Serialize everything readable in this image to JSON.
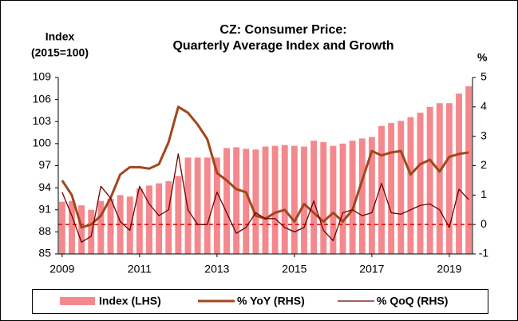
{
  "chart_data": {
    "type": "bar",
    "title": [
      "CZ: Consumer Price:",
      "Quarterly Average Index and Growth"
    ],
    "y_label": [
      "Index",
      "(2015=100)"
    ],
    "y2_label": "%",
    "x": [
      2009,
      2009.25,
      2009.5,
      2009.75,
      2010,
      2010.25,
      2010.5,
      2010.75,
      2011,
      2011.25,
      2011.5,
      2011.75,
      2012,
      2012.25,
      2012.5,
      2012.75,
      2013,
      2013.25,
      2013.5,
      2013.75,
      2014,
      2014.25,
      2014.5,
      2014.75,
      2015,
      2015.25,
      2015.5,
      2015.75,
      2016,
      2016.25,
      2016.5,
      2016.75,
      2017,
      2017.25,
      2017.5,
      2017.75,
      2018,
      2018.25,
      2018.5,
      2018.75,
      2019,
      2019.25,
      2019.5
    ],
    "xlim": [
      2008.9,
      2019.6
    ],
    "xticks": [
      2009,
      2011,
      2013,
      2015,
      2017,
      2019
    ],
    "ylim": [
      85,
      109
    ],
    "yticks": [
      85,
      88,
      91,
      94,
      97,
      100,
      103,
      106,
      109
    ],
    "y2lim": [
      -1,
      5
    ],
    "y2ticks": [
      -1,
      0,
      1,
      2,
      3,
      4,
      5
    ],
    "reference_line": {
      "value": 0,
      "axis": "y2",
      "color": "#e00000"
    },
    "series": [
      {
        "name": "Index (LHS)",
        "type": "bar",
        "color": "#f4888c",
        "values": [
          92.1,
          92.2,
          91.6,
          91.0,
          92.2,
          92.5,
          93.0,
          92.8,
          93.9,
          94.3,
          94.6,
          94.9,
          95.6,
          98.1,
          98.1,
          98.1,
          98.1,
          99.4,
          99.5,
          99.3,
          99.2,
          99.6,
          99.7,
          99.8,
          99.7,
          99.6,
          100.4,
          100.2,
          99.7,
          100.0,
          100.4,
          100.7,
          100.9,
          102.4,
          102.8,
          103.1,
          103.6,
          104.2,
          105.0,
          105.5,
          105.5,
          106.8,
          107.8
        ]
      },
      {
        "name": "% YoY (RHS)",
        "type": "line",
        "axis": "y2",
        "color": "#a2461c",
        "width": 3,
        "values": [
          1.5,
          1.0,
          -0.1,
          0.0,
          0.3,
          0.9,
          1.7,
          1.95,
          1.95,
          1.9,
          2.05,
          2.8,
          4.0,
          3.8,
          3.4,
          2.9,
          1.75,
          1.5,
          1.2,
          1.1,
          0.3,
          0.2,
          0.4,
          0.5,
          0.1,
          0.7,
          0.4,
          0.1,
          0.4,
          0.1,
          0.5,
          1.5,
          2.5,
          2.35,
          2.45,
          2.5,
          1.7,
          2.05,
          2.2,
          1.8,
          2.3,
          2.4,
          2.45
        ]
      },
      {
        "name": "% QoQ (RHS)",
        "type": "line",
        "axis": "y2",
        "color": "#6e0000",
        "width": 1.3,
        "values": [
          1.1,
          0.3,
          -0.6,
          -0.4,
          1.3,
          0.9,
          0.1,
          -0.2,
          1.3,
          0.7,
          0.3,
          0.5,
          2.4,
          0.5,
          0.0,
          0.0,
          1.1,
          0.4,
          -0.3,
          -0.1,
          0.4,
          0.2,
          0.2,
          -0.1,
          -0.25,
          -0.1,
          0.8,
          -0.2,
          -0.55,
          0.4,
          0.5,
          0.3,
          0.4,
          1.4,
          0.4,
          0.35,
          0.5,
          0.65,
          0.7,
          0.5,
          -0.1,
          1.2,
          0.85
        ]
      }
    ]
  }
}
